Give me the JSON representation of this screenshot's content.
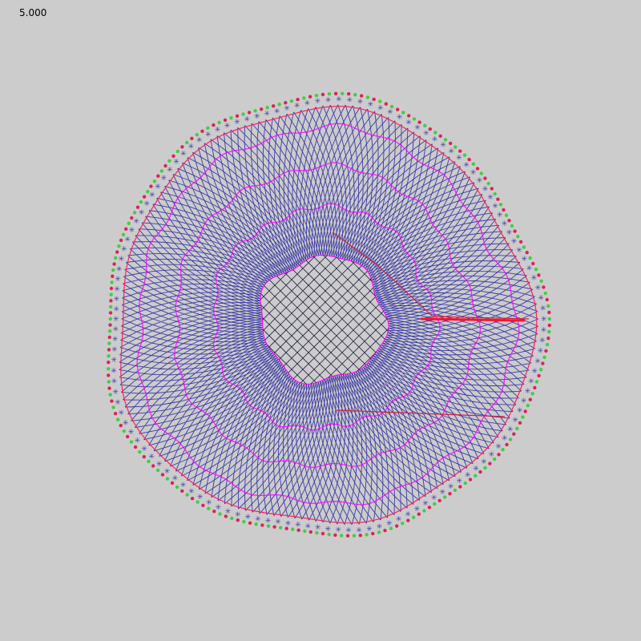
{
  "readout": "5.000",
  "colors": {
    "background": "#cccccc",
    "mesh": "#2b2a9e",
    "mesh_light": "#4b3bc0",
    "ring": "#ff00ff",
    "boundary": "#ff2060",
    "core_mesh": "#222244",
    "node_green": "#44cc44",
    "node_red": "#dd2255",
    "node_pale": "#eaffd0",
    "star": "#3a3aa8"
  },
  "icons": {
    "edge_node": "green-red-dot",
    "edge_marker": "star-icon"
  }
}
